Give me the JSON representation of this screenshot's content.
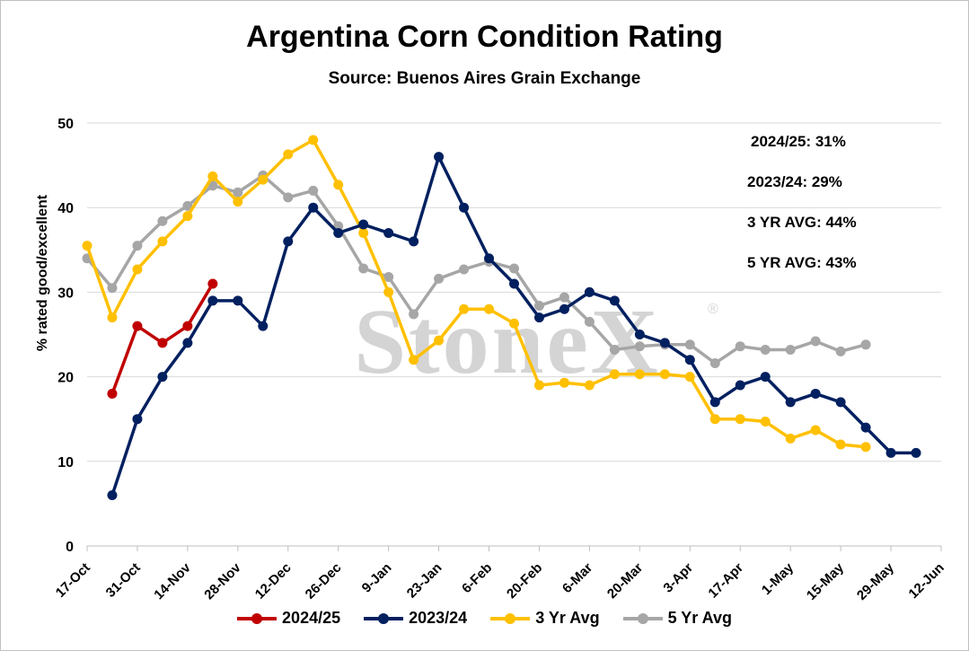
{
  "chart_data": {
    "type": "line",
    "title": "Argentina Corn Condition Rating",
    "subtitle": "Source: Buenos Aires Grain Exchange",
    "xlabel": "",
    "ylabel": "% rated good/excellent",
    "ylim": [
      0,
      50
    ],
    "yticks": [
      "0",
      "10",
      "20",
      "30",
      "40",
      "50"
    ],
    "xticks": [
      "17-Oct",
      "31-Oct",
      "14-Nov",
      "28-Nov",
      "12-Dec",
      "26-Dec",
      "9-Jan",
      "23-Jan",
      "6-Feb",
      "20-Feb",
      "6-Mar",
      "20-Mar",
      "3-Apr",
      "17-Apr",
      "1-May",
      "15-May",
      "29-May",
      "12-Jun"
    ],
    "grid": "horizontal",
    "legend_position": "bottom",
    "series": [
      {
        "name": "2024/25",
        "color": "#C00000",
        "start_week": 1,
        "values": [
          18,
          26,
          24,
          26,
          31
        ]
      },
      {
        "name": "2023/24",
        "color": "#002060",
        "start_week": 1,
        "values": [
          6,
          15,
          20,
          24,
          29,
          29,
          26,
          36,
          40,
          37,
          38,
          37,
          36,
          46,
          40,
          34,
          31,
          27,
          28,
          30,
          29,
          25,
          24,
          22,
          17,
          19,
          20,
          17,
          18,
          17,
          14,
          11,
          11
        ]
      },
      {
        "name": "3 Yr Avg",
        "color": "#FFC000",
        "start_week": 0,
        "values": [
          35.5,
          27,
          32.7,
          36,
          39,
          43.7,
          40.7,
          43.3,
          46.3,
          48,
          42.7,
          37,
          30,
          22,
          24.3,
          28,
          28,
          26.3,
          19,
          19.3,
          19,
          20.3,
          20.3,
          20.3,
          20,
          15,
          15,
          14.7,
          12.7,
          13.7,
          12,
          11.7
        ]
      },
      {
        "name": "5 Yr Avg",
        "color": "#A6A6A6",
        "start_week": 0,
        "values": [
          34,
          30.5,
          35.5,
          38.4,
          40.2,
          42.6,
          41.8,
          43.8,
          41.2,
          42,
          37.8,
          32.8,
          31.8,
          27.4,
          31.6,
          32.7,
          33.6,
          32.8,
          28.4,
          29.4,
          26.5,
          23.2,
          23.6,
          23.8,
          23.8,
          21.6,
          23.6,
          23.2,
          23.2,
          24.2,
          23,
          23.8
        ]
      }
    ],
    "annotations": [
      "2024/25: 31%",
      "2023/24: 29%",
      "3 YR AVG: 44%",
      "5 YR AVG: 43%"
    ],
    "watermark": "StoneX"
  }
}
